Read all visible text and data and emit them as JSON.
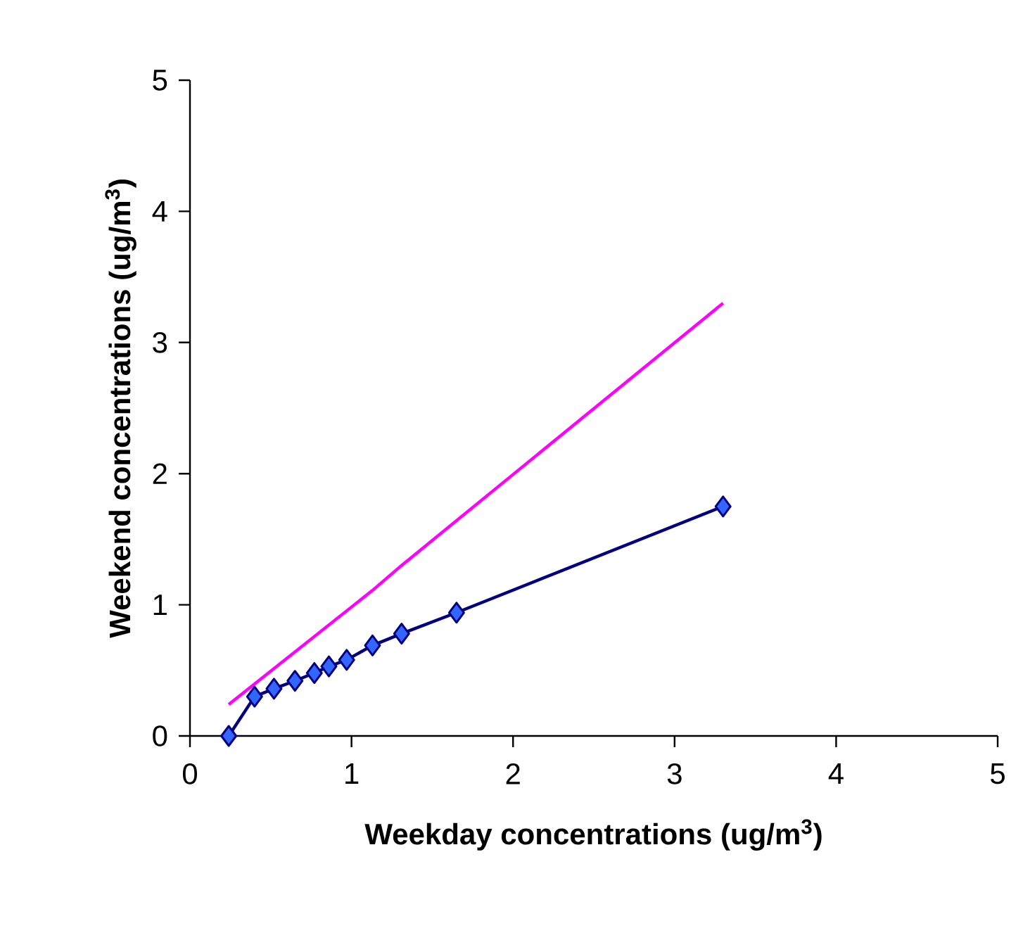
{
  "chart_data": {
    "type": "line",
    "xlabel": "Weekday concentrations (ug/m$^{3}$)",
    "ylabel": "Weekend concentrations (ug/m$^{3}$)",
    "xlim": [
      0,
      5
    ],
    "ylim": [
      0,
      5
    ],
    "xticks": [
      0,
      1,
      2,
      3,
      4,
      5
    ],
    "yticks": [
      0,
      1,
      2,
      3,
      4,
      5
    ],
    "grid": false,
    "series": [
      {
        "color": "#ff00ff",
        "marker": "none",
        "x": [
          0.24,
          1.13,
          1.31,
          3.3
        ],
        "values": [
          0.24,
          1.11,
          1.3,
          3.3
        ]
      },
      {
        "color": "#000080",
        "marker": "diamond",
        "x": [
          0.24,
          0.4,
          0.52,
          0.65,
          0.77,
          0.86,
          0.97,
          1.13,
          1.31,
          1.65,
          3.3
        ],
        "values": [
          0,
          0.3,
          0.36,
          0.42,
          0.48,
          0.53,
          0.58,
          0.69,
          0.78,
          0.94,
          1.75
        ]
      }
    ]
  }
}
